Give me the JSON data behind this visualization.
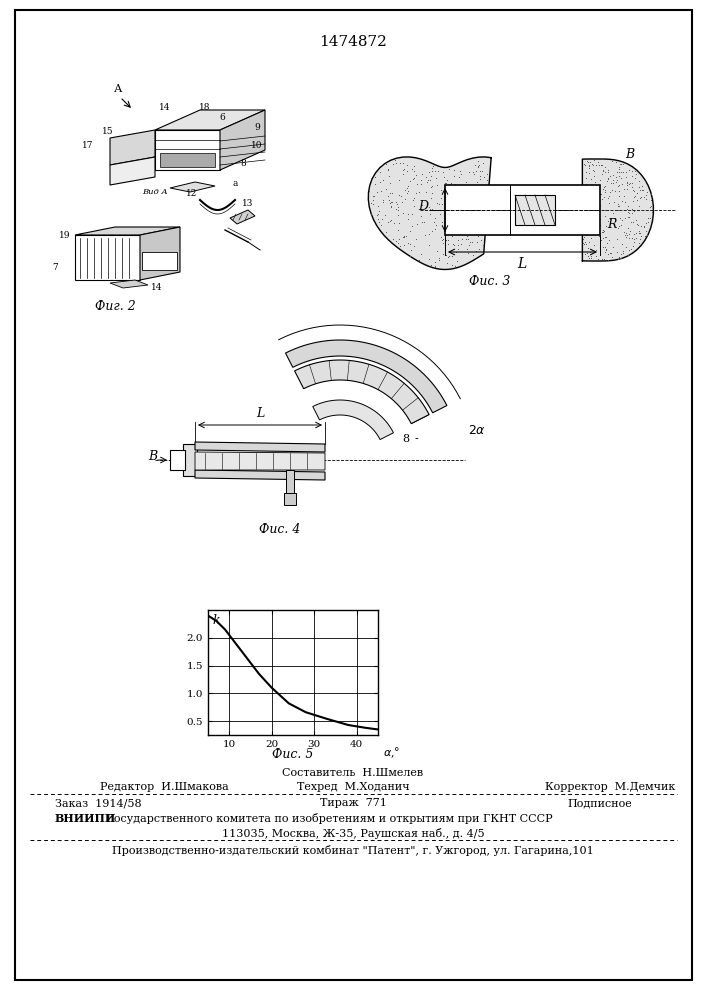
{
  "patent_number": "1474872",
  "page_color": "#ffffff",
  "fig2_label": "Фиг. 2",
  "fig3_label": "Фис. 3",
  "fig4_label": "Фис. 4",
  "fig5_label": "Фис. 5",
  "graph_xticks": [
    10,
    20,
    30,
    40
  ],
  "graph_yticks": [
    0.5,
    1.0,
    1.5,
    2.0
  ],
  "graph_xlim": [
    5,
    45
  ],
  "graph_ylim": [
    0.25,
    2.5
  ],
  "curve_x": [
    5,
    7,
    9,
    11,
    14,
    17,
    20,
    24,
    28,
    33,
    38,
    42,
    45
  ],
  "curve_y": [
    2.4,
    2.3,
    2.15,
    1.95,
    1.65,
    1.35,
    1.1,
    0.82,
    0.66,
    0.54,
    0.43,
    0.38,
    0.35
  ],
  "editor_line1": "Составитель  Н.Шмелев",
  "editor_line2_left": "Редактор  И.Шмакова",
  "editor_line2_center": "Техред  М.Ходанич",
  "editor_line2_right": "Корректор  М.Демчик",
  "bottom_line1_left": "Заказ  1914/58",
  "bottom_line1_center": "Тираж  771",
  "bottom_line1_right": "Подписное",
  "bottom_line2_bold": "ВНИИПИ",
  "bottom_line2_rest": " Государственного комитета по изобретениям и открытиям при ГКНТ СССР",
  "bottom_line3": "113035, Москва, Ж-35, Раушская наб., д. 4/5",
  "bottom_line4": "Производственно-издательский комбинат \"Патент\", г. Ужгород, ул. Гагарина,101"
}
